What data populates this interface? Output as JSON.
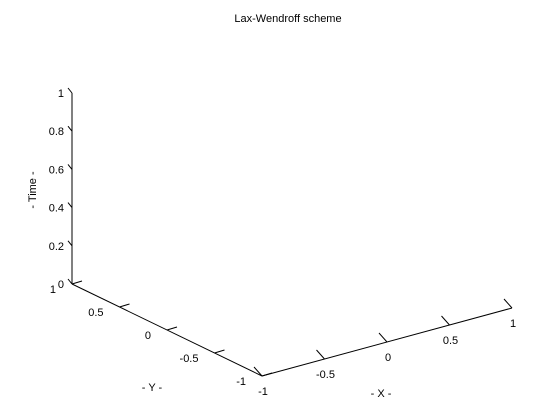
{
  "chart_data": {
    "type": "surface3d",
    "title": "Lax-Wendroff scheme",
    "xlabel": "- X -",
    "ylabel": "- Y -",
    "zlabel": "- Time -",
    "xlim": [
      -1,
      1
    ],
    "ylim": [
      -1,
      1
    ],
    "zlim": [
      0,
      1
    ],
    "x_ticks": [
      "-1",
      "-0.5",
      "0",
      "0.5",
      "1"
    ],
    "y_ticks": [
      "-1",
      "-0.5",
      "0",
      "0.5",
      "1"
    ],
    "z_ticks": [
      "0",
      "0.2",
      "0.4",
      "0.6",
      "0.8",
      "1"
    ],
    "grid": false,
    "series": []
  }
}
